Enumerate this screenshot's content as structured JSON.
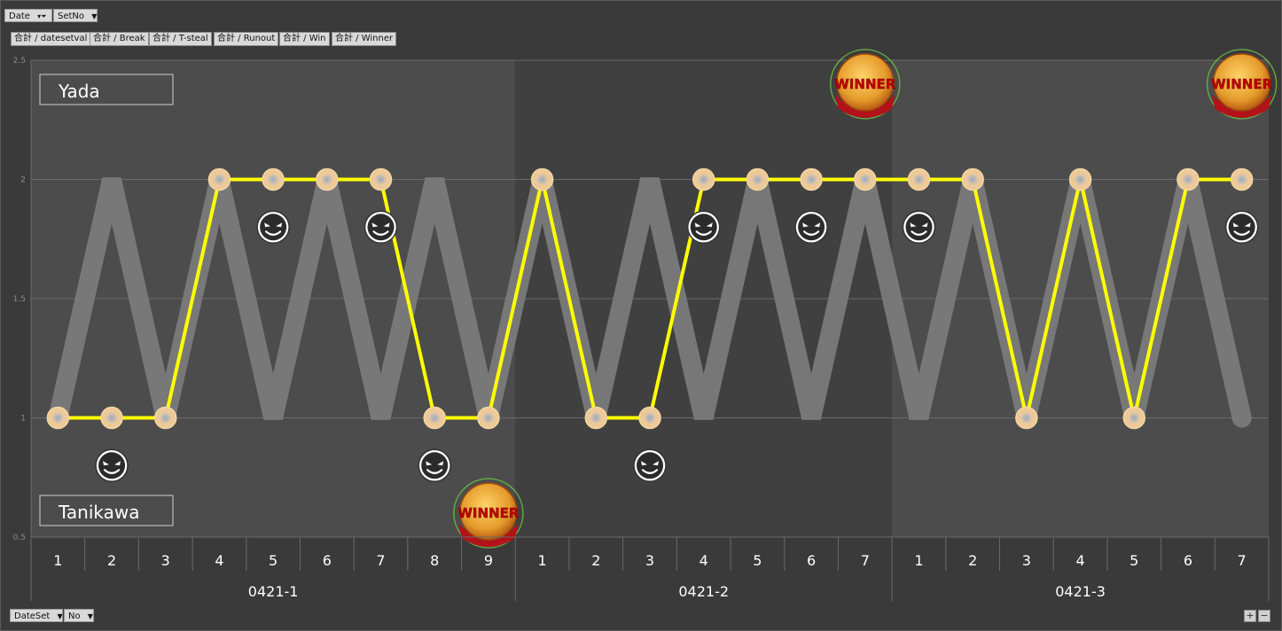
{
  "filters": {
    "top": [
      {
        "label": "Date",
        "icon": "filter-icon"
      },
      {
        "label": "SetNo"
      }
    ],
    "bottom": [
      {
        "label": "DateSet"
      },
      {
        "label": "No"
      }
    ]
  },
  "value_fields": [
    "合計 / datesetval",
    "合計 / Break",
    "合計 / T-steal",
    "合計 / Runout",
    "合計 / Win",
    "合計 / Winner"
  ],
  "players": {
    "top": "Yada",
    "bottom": "Tanikawa"
  },
  "zoom": {
    "plus": "+",
    "minus": "−"
  },
  "winner_badge_text": "WINNER",
  "colors": {
    "line": "#ffff00",
    "zigzag": "#7a7a7a",
    "band_a": "#4c4c4c",
    "band_b": "#404040",
    "frame": "#3a3a3a"
  },
  "chart_data": {
    "type": "line",
    "ylim": [
      0.5,
      2.5
    ],
    "yticks": [
      0.5,
      1,
      1.5,
      2,
      2.5
    ],
    "grid": true,
    "groups": [
      {
        "name": "0421-1",
        "items": [
          "1",
          "2",
          "3",
          "4",
          "5",
          "6",
          "7",
          "8",
          "9"
        ]
      },
      {
        "name": "0421-2",
        "items": [
          "1",
          "2",
          "3",
          "4",
          "5",
          "6",
          "7"
        ]
      },
      {
        "name": "0421-3",
        "items": [
          "1",
          "2",
          "3",
          "4",
          "5",
          "6",
          "7"
        ]
      }
    ],
    "series": [
      {
        "values": [
          1,
          1,
          1,
          2,
          2,
          2,
          2,
          1,
          1,
          2,
          1,
          1,
          2,
          2,
          2,
          2,
          2,
          2,
          1,
          2,
          1,
          2,
          2
        ]
      }
    ],
    "zigzag": [
      1,
      2,
      1,
      2,
      1,
      2,
      1,
      2,
      1,
      2,
      1,
      2,
      1,
      2,
      1,
      2,
      1,
      2,
      1,
      2,
      1,
      2,
      1
    ],
    "break_icons": [
      {
        "index": 1,
        "y": 0.8
      },
      {
        "index": 4,
        "y": 1.8
      },
      {
        "index": 6,
        "y": 1.8
      },
      {
        "index": 7,
        "y": 0.8
      },
      {
        "index": 11,
        "y": 0.8
      },
      {
        "index": 12,
        "y": 1.8
      },
      {
        "index": 14,
        "y": 1.8
      },
      {
        "index": 16,
        "y": 1.8
      },
      {
        "index": 22,
        "y": 1.8
      }
    ],
    "winner_badges": [
      {
        "index": 8,
        "y": 0.6
      },
      {
        "index": 15,
        "y": 2.4
      },
      {
        "index": 22,
        "y": 2.4
      }
    ]
  }
}
